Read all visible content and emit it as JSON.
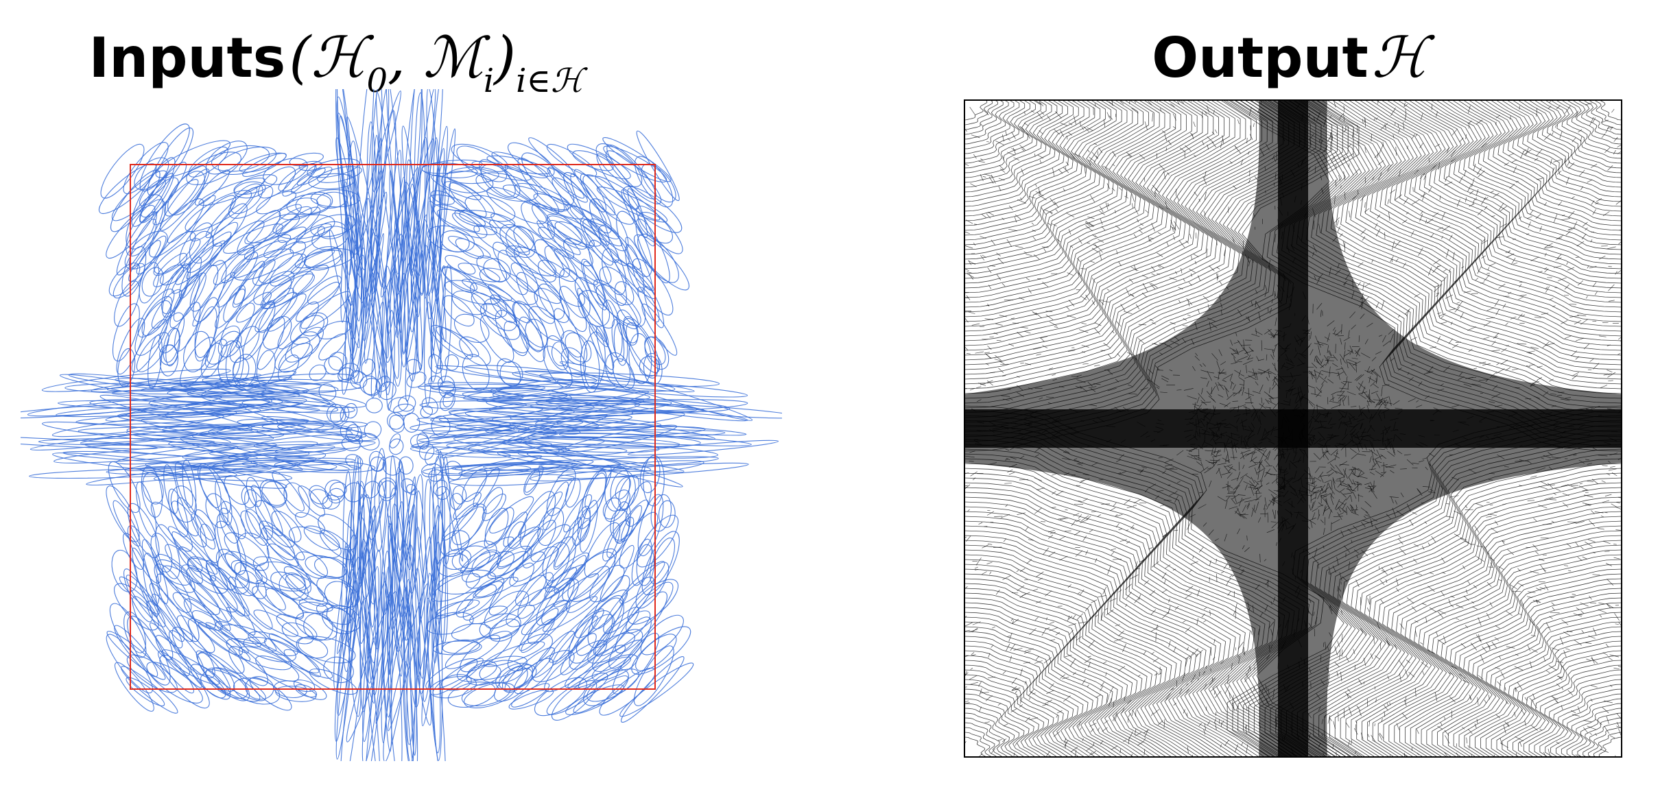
{
  "left_panel": {
    "title_word": "Inputs",
    "title_math_open": "(",
    "title_math_h": "ℋ",
    "title_math_h_sub": "0",
    "title_math_comma": ", ",
    "title_math_m": "ℳ",
    "title_math_m_sub": "i",
    "title_math_close": ")",
    "title_math_index": "i∈ℋ",
    "ellipse_color": "#3a6fd8",
    "boundary_color": "#e0291b"
  },
  "right_panel": {
    "title_word": "Output",
    "title_math_h": "ℋ",
    "mesh_color": "#000000"
  }
}
